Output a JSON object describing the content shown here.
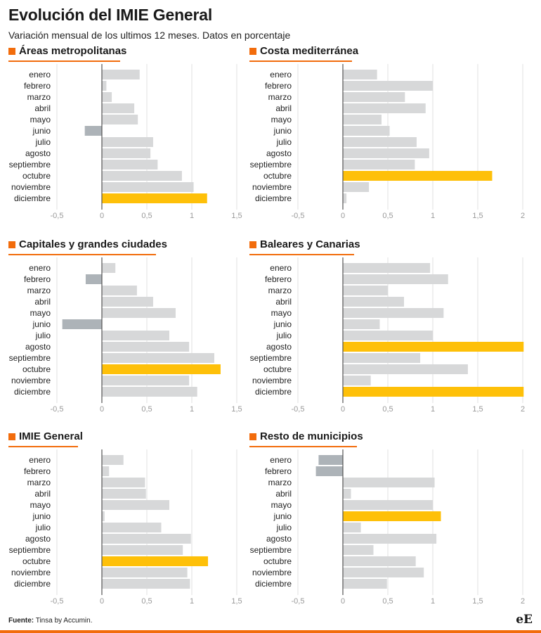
{
  "header": {
    "title": "Evolución del IMIE General",
    "subtitle": "Variación mensual de los ultimos 12 meses. Datos en porcentaje"
  },
  "colors": {
    "accent": "#f26c0c",
    "highlight": "#fec009",
    "positive": "#d7d8d9",
    "negative": "#adb3b8",
    "axis": "#555555",
    "grid": "#e2e2e2"
  },
  "footer": {
    "source_label": "Fuente:",
    "source_text": "Tinsa by Accumin.",
    "logo_text": "eE"
  },
  "chart_data": [
    {
      "type": "bar",
      "orientation": "horizontal",
      "title": "Áreas metropolitanas",
      "categories": [
        "enero",
        "febrero",
        "marzo",
        "abril",
        "mayo",
        "junio",
        "julio",
        "agosto",
        "septiembre",
        "octubre",
        "noviembre",
        "diciembre"
      ],
      "values": [
        0.42,
        0.05,
        0.11,
        0.36,
        0.4,
        -0.19,
        0.57,
        0.54,
        0.62,
        0.89,
        1.02,
        1.17
      ],
      "highlight_index": 11,
      "xlim": [
        -0.5,
        1.5
      ],
      "ticks": [
        -0.5,
        0,
        0.5,
        1,
        1.5
      ],
      "tick_labels": [
        "-0,5",
        "0",
        "0,5",
        "1",
        "1,5"
      ],
      "grid": true
    },
    {
      "type": "bar",
      "orientation": "horizontal",
      "title": "Costa mediterránea",
      "categories": [
        "enero",
        "febrero",
        "marzo",
        "abril",
        "mayo",
        "junio",
        "julio",
        "agosto",
        "septiembre",
        "octubre",
        "noviembre",
        "diciembre"
      ],
      "values": [
        0.38,
        1.0,
        0.69,
        0.92,
        0.43,
        0.52,
        0.82,
        0.96,
        0.8,
        1.66,
        0.29,
        0.04
      ],
      "highlight_index": 9,
      "xlim": [
        -0.5,
        2
      ],
      "ticks": [
        -0.5,
        0,
        0.5,
        1,
        1.5,
        2
      ],
      "tick_labels": [
        "-0,5",
        "0",
        "0,5",
        "1",
        "1,5",
        "2"
      ],
      "grid": true
    },
    {
      "type": "bar",
      "orientation": "horizontal",
      "title": "Capitales y grandes ciudades",
      "categories": [
        "enero",
        "febrero",
        "marzo",
        "abril",
        "mayo",
        "junio",
        "julio",
        "agosto",
        "septiembre",
        "octubre",
        "noviembre",
        "diciembre"
      ],
      "values": [
        0.15,
        -0.18,
        0.39,
        0.57,
        0.82,
        -0.44,
        0.75,
        0.97,
        1.25,
        1.32,
        0.97,
        1.06
      ],
      "highlight_index": 9,
      "xlim": [
        -0.5,
        1.5
      ],
      "ticks": [
        -0.5,
        0,
        0.5,
        1,
        1.5
      ],
      "tick_labels": [
        "-0,5",
        "0",
        "0,5",
        "1",
        "1,5"
      ],
      "grid": true
    },
    {
      "type": "bar",
      "orientation": "horizontal",
      "title": "Baleares y Canarias",
      "categories": [
        "enero",
        "febrero",
        "marzo",
        "abril",
        "mayo",
        "junio",
        "julio",
        "agosto",
        "septiembre",
        "octubre",
        "noviembre",
        "diciembre"
      ],
      "values": [
        0.97,
        1.17,
        0.5,
        0.68,
        1.12,
        0.41,
        1.0,
        2.01,
        0.86,
        1.39,
        0.31,
        2.01
      ],
      "highlight_index": [
        7,
        11
      ],
      "xlim": [
        -0.5,
        2
      ],
      "ticks": [
        -0.5,
        0,
        0.5,
        1,
        1.5,
        2
      ],
      "tick_labels": [
        "-0,5",
        "0",
        "0,5",
        "1",
        "1,5",
        "2"
      ],
      "grid": true
    },
    {
      "type": "bar",
      "orientation": "horizontal",
      "title": "IMIE General",
      "categories": [
        "enero",
        "febrero",
        "marzo",
        "abril",
        "mayo",
        "junio",
        "julio",
        "agosto",
        "septiembre",
        "octubre",
        "noviembre",
        "diciembre"
      ],
      "values": [
        0.24,
        0.08,
        0.48,
        0.49,
        0.75,
        0.03,
        0.66,
        0.99,
        0.9,
        1.18,
        0.95,
        0.98
      ],
      "highlight_index": 9,
      "xlim": [
        -0.5,
        1.5
      ],
      "ticks": [
        -0.5,
        0,
        0.5,
        1,
        1.5
      ],
      "tick_labels": [
        "-0,5",
        "0",
        "0,5",
        "1",
        "1,5"
      ],
      "grid": true
    },
    {
      "type": "bar",
      "orientation": "horizontal",
      "title": "Resto de municipios",
      "categories": [
        "enero",
        "febrero",
        "marzo",
        "abril",
        "mayo",
        "junio",
        "julio",
        "agosto",
        "septiembre",
        "octubre",
        "noviembre",
        "diciembre"
      ],
      "values": [
        -0.27,
        -0.3,
        1.02,
        0.09,
        1.0,
        1.09,
        0.2,
        1.04,
        0.34,
        0.81,
        0.9,
        0.49
      ],
      "highlight_index": 5,
      "xlim": [
        -0.5,
        2
      ],
      "ticks": [
        -0.5,
        0,
        0.5,
        1,
        1.5,
        2
      ],
      "tick_labels": [
        "-0,5",
        "0",
        "0,5",
        "1",
        "1,5",
        "2"
      ],
      "grid": true
    }
  ]
}
